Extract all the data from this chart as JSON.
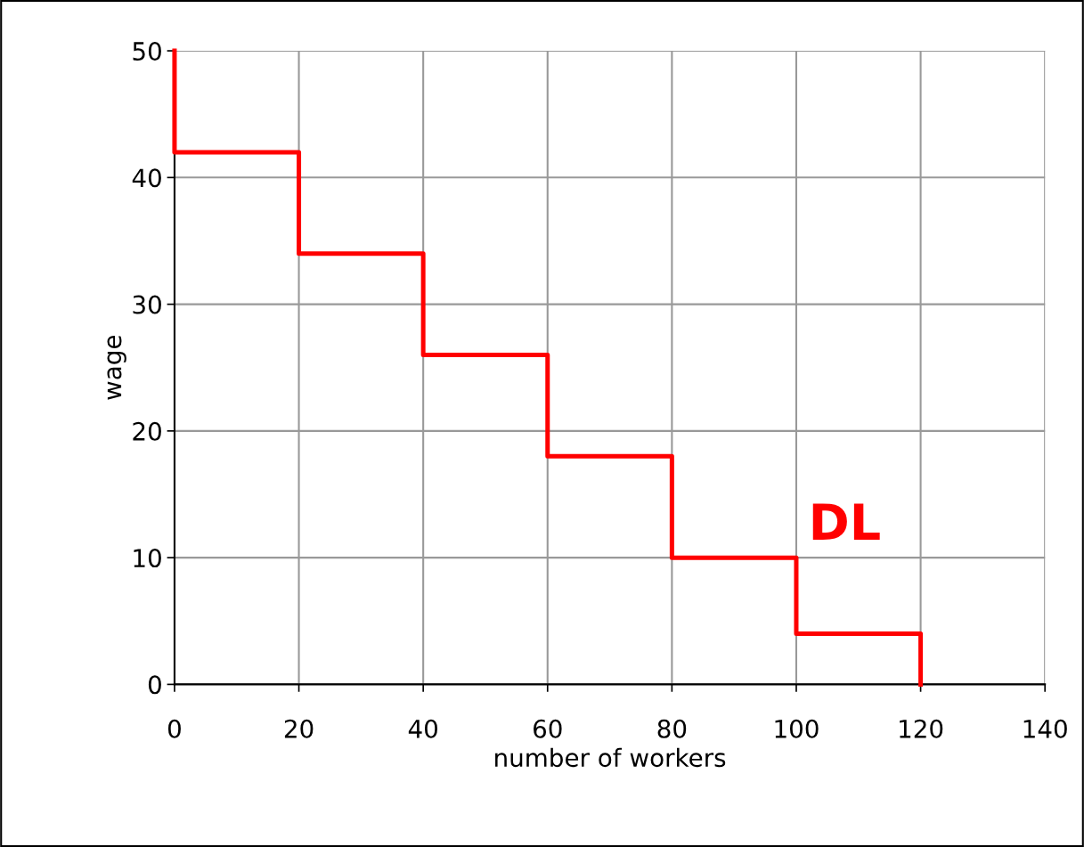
{
  "chart_data": {
    "type": "line",
    "xlabel": "number of workers",
    "ylabel": "wage",
    "series": [
      {
        "color": "#ff0000",
        "x": [
          0,
          0,
          20,
          20,
          40,
          40,
          60,
          60,
          80,
          80,
          100,
          100,
          120,
          120
        ],
        "values": [
          50,
          42,
          42,
          34,
          34,
          26,
          26,
          18,
          18,
          10,
          10,
          4,
          4,
          0
        ]
      }
    ],
    "xlim": [
      0,
      140
    ],
    "xticks": [
      0,
      20,
      40,
      60,
      80,
      100,
      120,
      140
    ],
    "ylim": [
      0,
      50
    ],
    "yticks": [
      0,
      10,
      20,
      30,
      40,
      50
    ],
    "grid": true,
    "marker": "none",
    "line_style": "solid",
    "annotations": [
      "DL"
    ]
  }
}
